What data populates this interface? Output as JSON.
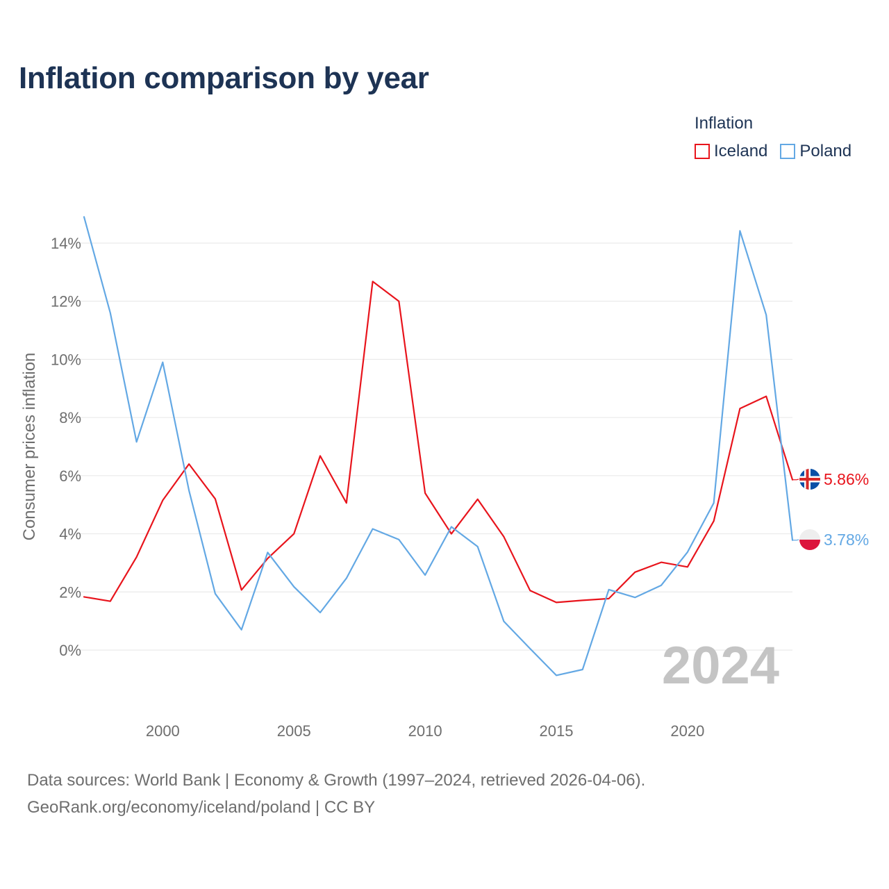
{
  "colors": {
    "iceland": "#e8141c",
    "poland": "#63a8e4",
    "title": "#1d3354",
    "muted": "#6e6e6e",
    "grid": "#e6e6e6",
    "watermark": "#c4c4c4"
  },
  "header": {
    "title": "Inflation comparison by year"
  },
  "legend": {
    "title": "Inflation",
    "items": [
      {
        "label": "Iceland",
        "color": "#e8141c"
      },
      {
        "label": "Poland",
        "color": "#63a8e4"
      }
    ]
  },
  "footer": {
    "line1": "Data sources: World Bank | Economy & Growth (1997–2024, retrieved 2026-04-06).",
    "line2": "GeoRank.org/economy/iceland/poland | CC BY"
  },
  "chart_data": {
    "type": "line",
    "title": "Inflation comparison by year",
    "xlabel": "",
    "ylabel": "Consumer prices inflation",
    "xlim": [
      1997,
      2024
    ],
    "ylim": [
      -2,
      15
    ],
    "grid": true,
    "legend_position": "top-right",
    "x_ticks": [
      2000,
      2005,
      2010,
      2015,
      2020
    ],
    "x_tick_labels": [
      "2000",
      "2005",
      "2010",
      "2015",
      "2020"
    ],
    "y_ticks": [
      0,
      2,
      4,
      6,
      8,
      10,
      12,
      14
    ],
    "y_tick_labels": [
      "0%",
      "2%",
      "4%",
      "6%",
      "8%",
      "10%",
      "12%",
      "14%"
    ],
    "watermark_year": "2024",
    "x": [
      1997,
      1998,
      1999,
      2000,
      2001,
      2002,
      2003,
      2004,
      2005,
      2006,
      2007,
      2008,
      2009,
      2010,
      2011,
      2012,
      2013,
      2014,
      2015,
      2016,
      2017,
      2018,
      2019,
      2020,
      2021,
      2022,
      2023,
      2024
    ],
    "series": [
      {
        "name": "Iceland",
        "color": "#e8141c",
        "end_label": "5.86%",
        "flag": "iceland",
        "values": [
          1.83,
          1.68,
          3.2,
          5.15,
          6.4,
          5.2,
          2.07,
          3.15,
          4.0,
          6.68,
          5.06,
          12.68,
          12.0,
          5.4,
          4.0,
          5.19,
          3.9,
          2.05,
          1.64,
          1.71,
          1.77,
          2.68,
          3.02,
          2.86,
          4.44,
          8.31,
          8.73,
          5.86
        ]
      },
      {
        "name": "Poland",
        "color": "#63a8e4",
        "end_label": "3.78%",
        "flag": "poland",
        "values": [
          14.9,
          11.6,
          7.16,
          9.9,
          5.49,
          1.94,
          0.7,
          3.36,
          2.18,
          1.29,
          2.47,
          4.17,
          3.8,
          2.58,
          4.24,
          3.56,
          0.99,
          0.05,
          -0.87,
          -0.67,
          2.08,
          1.81,
          2.23,
          3.37,
          5.06,
          14.42,
          11.53,
          3.78
        ]
      }
    ]
  }
}
